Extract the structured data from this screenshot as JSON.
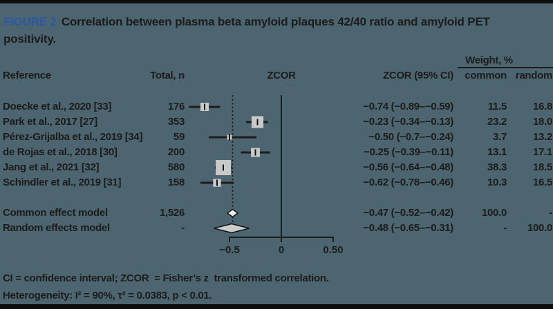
{
  "figure": {
    "label": "FIGURE 2",
    "title_text": "Correlation between plasma beta amyloid plaques 42/40 ratio and amyloid PET positivity."
  },
  "table": {
    "headers": {
      "reference": "Reference",
      "total": "Total, n",
      "zcor": "ZCOR",
      "zcor_ci": "ZCOR (95% CI)",
      "weight_group": "Weight, %",
      "weight_common": "common",
      "weight_random": "random"
    }
  },
  "chart_data": {
    "type": "forest",
    "xlabel": "ZCOR",
    "axis": {
      "range": [
        -0.5,
        0.5
      ],
      "ticks": [
        {
          "value": -0.5,
          "label": "−0.5"
        },
        {
          "value": 0,
          "label": "0"
        },
        {
          "value": 0.5,
          "label": "0.50"
        }
      ],
      "zero_line": 0,
      "dashed_line_at": -0.47
    },
    "studies": [
      {
        "reference": "Doecke et al., 2020 [33]",
        "total": "176",
        "estimate": -0.74,
        "ci_low": -0.89,
        "ci_high": -0.59,
        "zcor_ci": "−0.74 (−0.89–−0.59)",
        "weight_common": "11.5",
        "weight_random": "16.8",
        "wc": 11.5
      },
      {
        "reference": "Park et al., 2017 [27]",
        "total": "353",
        "estimate": -0.23,
        "ci_low": -0.34,
        "ci_high": -0.13,
        "zcor_ci": "−0.23 (−0.34–−0.13)",
        "weight_common": "23.2",
        "weight_random": "18.0",
        "wc": 23.2
      },
      {
        "reference": "Pérez-Grijalba et al., 2019 [34]",
        "total": "59",
        "estimate": -0.5,
        "ci_low": -0.7,
        "ci_high": -0.24,
        "zcor_ci": "−0.50 (−0.7–−0.24)",
        "weight_common": "3.7",
        "weight_random": "13.2",
        "wc": 3.7
      },
      {
        "reference": "de Rojas et al., 2018 [30]",
        "total": "200",
        "estimate": -0.25,
        "ci_low": -0.39,
        "ci_high": -0.11,
        "zcor_ci": "−0.25 (−0.39–−0.11)",
        "weight_common": "13.1",
        "weight_random": "17.1",
        "wc": 13.1
      },
      {
        "reference": "Jang et al., 2021 [32]",
        "total": "580",
        "estimate": -0.56,
        "ci_low": -0.64,
        "ci_high": -0.48,
        "zcor_ci": "−0.56 (−0.64–−0.48)",
        "weight_common": "38.3",
        "weight_random": "18.5",
        "wc": 38.3
      },
      {
        "reference": "Schindler et al., 2019 [31]",
        "total": "158",
        "estimate": -0.62,
        "ci_low": -0.78,
        "ci_high": -0.46,
        "zcor_ci": "−0.62 (−0.78–−0.46)",
        "weight_common": "10.3",
        "weight_random": "16.5",
        "wc": 10.3
      }
    ],
    "models": [
      {
        "reference": "Common effect model",
        "total": "1,526",
        "estimate": -0.47,
        "ci_low": -0.52,
        "ci_high": -0.42,
        "zcor_ci": "−0.47 (−0.52–−0.42)",
        "weight_common": "100.0",
        "weight_random": "-",
        "diamond": "small"
      },
      {
        "reference": "Random effects model",
        "total": "-",
        "estimate": -0.48,
        "ci_low": -0.65,
        "ci_high": -0.31,
        "zcor_ci": "−0.48 (−0.65–−0.31)",
        "weight_common": "-",
        "weight_random": "100.0",
        "diamond": "large"
      }
    ]
  },
  "footer": {
    "line1": "CI = confidence interval; ZCOR  = Fisher’s z  transformed correlation.",
    "line2": "Heterogeneity: I² = 90%, τ² = 0.0383, p < 0.01."
  },
  "colors": {
    "background": "#4d6570",
    "text": "#1c1c1a",
    "figure_label_blue": "#2a58a5",
    "marker_fill": "#c9c9c9",
    "diamond_common_fill": "#ececec",
    "diamond_random_fill": "#cccccc",
    "frame_bar": "#0e0e0e"
  }
}
